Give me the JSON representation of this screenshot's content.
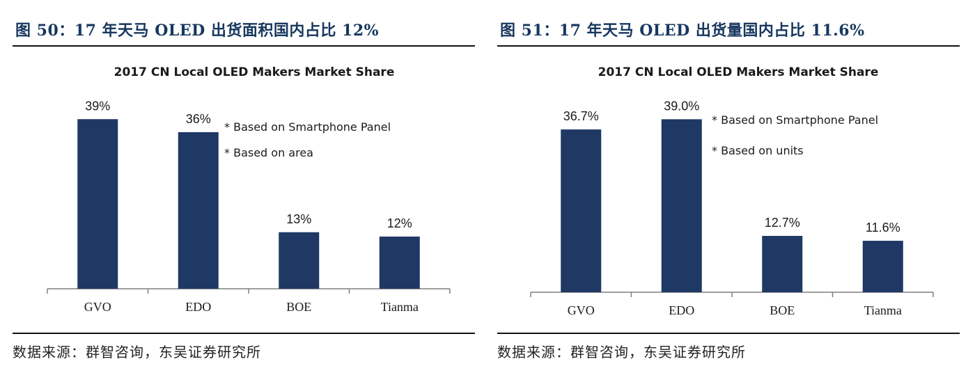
{
  "figures": [
    {
      "title": "图 50：17 年天马 OLED 出货面积国内占比 12%",
      "source": "数据来源：群智咨询，东吴证券研究所"
    },
    {
      "title": "图 51：17 年天马 OLED 出货量国内占比 11.6%",
      "source": "数据来源：群智咨询，东吴证券研究所"
    }
  ],
  "chart_data": [
    {
      "type": "bar",
      "title": "2017 CN Local OLED Makers Market Share",
      "categories": [
        "GVO",
        "EDO",
        "BOE",
        "Tianma"
      ],
      "values": [
        39,
        36,
        13,
        12
      ],
      "value_labels": [
        "39%",
        "36%",
        "13%",
        "12%"
      ],
      "unit": "%",
      "ylim": [
        0,
        40
      ],
      "grid": false,
      "notes": [
        "* Based on Smartphone Panel",
        "* Based on area"
      ],
      "bar_color": "#1f3864"
    },
    {
      "type": "bar",
      "title": "2017 CN Local OLED Makers Market Share",
      "categories": [
        "GVO",
        "EDO",
        "BOE",
        "Tianma"
      ],
      "values": [
        36.7,
        39.0,
        12.7,
        11.6
      ],
      "value_labels": [
        "36.7%",
        "39.0%",
        "12.7%",
        "11.6%"
      ],
      "unit": "%",
      "ylim": [
        0,
        40
      ],
      "grid": false,
      "notes": [
        "* Based on Smartphone Panel",
        "* Based on units"
      ],
      "bar_color": "#1f3864"
    }
  ]
}
